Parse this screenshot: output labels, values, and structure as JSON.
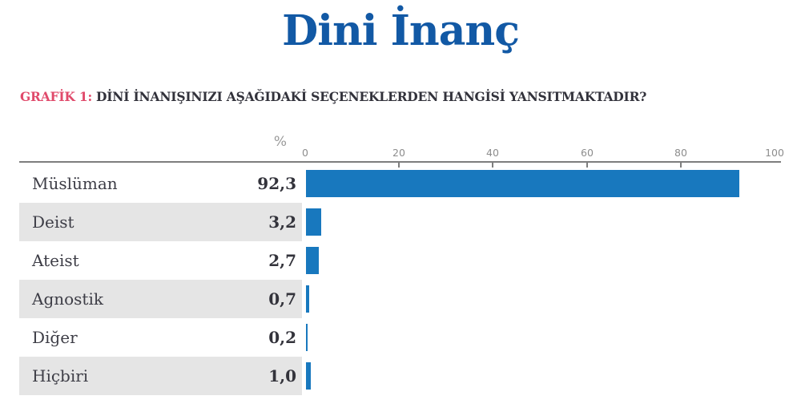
{
  "title": {
    "text": "Dini İnanç",
    "color": "#1259a5"
  },
  "subtitle": {
    "prefix": "GRAFİK 1:",
    "prefix_color": "#e04a6b",
    "text": "DİNİ İNANIŞINIZI AŞAĞIDAKİ SEÇENEKLERDEN HANGİSİ YANSITMAKTADIR?",
    "text_color": "#32323b"
  },
  "chart_data": {
    "type": "bar",
    "orientation": "horizontal",
    "title": "Dini İnanç",
    "question": "DİNİ İNANIŞINIZI AŞAĞIDAKİ SEÇENEKLERDEN HANGİSİ YANSITMAKTADIR?",
    "unit": "%",
    "categories": [
      "Müslüman",
      "Deist",
      "Ateist",
      "Agnostik",
      "Diğer",
      "Hiçbiri"
    ],
    "values": [
      92.3,
      3.2,
      2.7,
      0.7,
      0.2,
      1.0
    ],
    "value_labels": [
      "92,3",
      "3,2",
      "2,7",
      "0,7",
      "0,2",
      "1,0"
    ],
    "x_axis": {
      "label": "%",
      "range": [
        0,
        100
      ],
      "ticks": [
        0,
        20,
        40,
        60,
        80,
        100
      ]
    },
    "legend": "none",
    "grid": "off",
    "bar_color": "#1878be",
    "row_alt_color": "#e5e5e5"
  }
}
